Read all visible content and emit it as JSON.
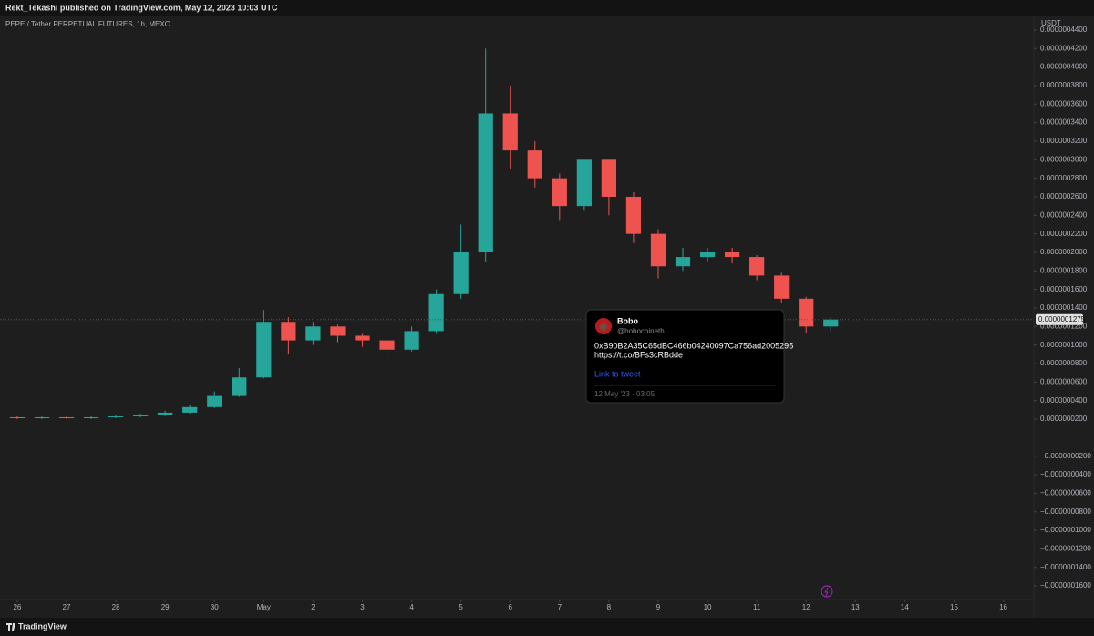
{
  "header": {
    "publisher": "Rekt_Tekashi published on TradingView.com, May 12, 2023 10:03 UTC"
  },
  "chart_data": {
    "type": "candlestick",
    "title": "PEPE / Tether PERPETUAL FUTURES, 1h, MEXC",
    "currency": "USDT",
    "up_color": "#26a69a",
    "down_color": "#ef5350",
    "x": [
      0,
      0.5,
      1,
      1.5,
      2,
      2.5,
      3,
      3.5,
      4,
      4.5,
      5,
      5.5,
      6,
      6.5,
      7,
      7.5,
      8,
      8.5,
      9,
      9.5,
      10,
      10.5,
      11,
      11.5,
      12,
      12.5,
      13,
      13.5,
      14,
      14.5,
      15,
      15.5,
      16,
      16.5
    ],
    "open": [
      2.2e-08,
      2.1e-08,
      2.2e-08,
      2.1e-08,
      2.2e-08,
      2.3e-08,
      2.4e-08,
      2.7e-08,
      3.3e-08,
      4.5e-08,
      6.5e-08,
      1.25e-07,
      1.05e-07,
      1.2e-07,
      1.1e-07,
      1.05e-07,
      9.5e-08,
      1.15e-07,
      1.55e-07,
      2e-07,
      3.5e-07,
      3.1e-07,
      2.8e-07,
      2.5e-07,
      3e-07,
      2.6e-07,
      2.2e-07,
      1.85e-07,
      1.95e-07,
      2e-07,
      1.95e-07,
      1.75e-07,
      1.5e-07,
      1.2e-07
    ],
    "high": [
      2.3e-08,
      2.3e-08,
      2.3e-08,
      2.3e-08,
      2.4e-08,
      2.6e-08,
      2.9e-08,
      3.5e-08,
      5e-08,
      7.5e-08,
      1.38e-07,
      1.3e-07,
      1.25e-07,
      1.22e-07,
      1.12e-07,
      1.08e-07,
      1.2e-07,
      1.6e-07,
      2.3e-07,
      4.2e-07,
      3.8e-07,
      3.2e-07,
      2.85e-07,
      3e-07,
      3e-07,
      2.65e-07,
      2.25e-07,
      2.05e-07,
      2.05e-07,
      2.05e-07,
      1.97e-07,
      1.78e-07,
      1.52e-07,
      1.3e-07
    ],
    "low": [
      2e-08,
      2e-08,
      2e-08,
      2e-08,
      2.1e-08,
      2.2e-08,
      2.3e-08,
      2.6e-08,
      3.2e-08,
      4.4e-08,
      6.4e-08,
      9e-08,
      1e-07,
      1.03e-07,
      9.8e-08,
      8.5e-08,
      9.3e-08,
      1.12e-07,
      1.5e-07,
      1.9e-07,
      2.9e-07,
      2.7e-07,
      2.35e-07,
      2.45e-07,
      2.4e-07,
      2.1e-07,
      1.72e-07,
      1.8e-07,
      1.9e-07,
      1.88e-07,
      1.7e-07,
      1.45e-07,
      1.13e-07,
      1.15e-07
    ],
    "close": [
      2.1e-08,
      2.2e-08,
      2.1e-08,
      2.2e-08,
      2.3e-08,
      2.4e-08,
      2.7e-08,
      3.3e-08,
      4.5e-08,
      6.5e-08,
      1.25e-07,
      1.05e-07,
      1.2e-07,
      1.1e-07,
      1.05e-07,
      9.5e-08,
      1.15e-07,
      1.55e-07,
      2e-07,
      3.5e-07,
      3.1e-07,
      2.8e-07,
      2.5e-07,
      3e-07,
      2.6e-07,
      2.2e-07,
      1.85e-07,
      1.95e-07,
      2e-07,
      1.95e-07,
      1.75e-07,
      1.5e-07,
      1.2e-07,
      1.275e-07
    ],
    "last_price": {
      "value": 1.275e-07,
      "label": "0.0000001275"
    },
    "xlim": [
      -0.35,
      20.6
    ],
    "xticks": [
      {
        "value": 0,
        "label": "26"
      },
      {
        "value": 1,
        "label": "27"
      },
      {
        "value": 2,
        "label": "28"
      },
      {
        "value": 3,
        "label": "29"
      },
      {
        "value": 4,
        "label": "30"
      },
      {
        "value": 5,
        "label": "May"
      },
      {
        "value": 6,
        "label": "2"
      },
      {
        "value": 7,
        "label": "3"
      },
      {
        "value": 8,
        "label": "4"
      },
      {
        "value": 9,
        "label": "5"
      },
      {
        "value": 10,
        "label": "6"
      },
      {
        "value": 11,
        "label": "7"
      },
      {
        "value": 12,
        "label": "8"
      },
      {
        "value": 13,
        "label": "9"
      },
      {
        "value": 14,
        "label": "10"
      },
      {
        "value": 15,
        "label": "11"
      },
      {
        "value": 16,
        "label": "12"
      },
      {
        "value": 17,
        "label": "13"
      },
      {
        "value": 18,
        "label": "14"
      },
      {
        "value": 19,
        "label": "15"
      },
      {
        "value": 20,
        "label": "16"
      }
    ],
    "ylim": [
      -1.747e-07,
      4.547e-07
    ],
    "yticks": [
      {
        "value": 4.4e-07,
        "label": "0.0000004400"
      },
      {
        "value": 4.2e-07,
        "label": "0.0000004200"
      },
      {
        "value": 4e-07,
        "label": "0.0000004000"
      },
      {
        "value": 3.8e-07,
        "label": "0.0000003800"
      },
      {
        "value": 3.6e-07,
        "label": "0.0000003600"
      },
      {
        "value": 3.4e-07,
        "label": "0.0000003400"
      },
      {
        "value": 3.2e-07,
        "label": "0.0000003200"
      },
      {
        "value": 3e-07,
        "label": "0.0000003000"
      },
      {
        "value": 2.8e-07,
        "label": "0.0000002800"
      },
      {
        "value": 2.6e-07,
        "label": "0.0000002600"
      },
      {
        "value": 2.4e-07,
        "label": "0.0000002400"
      },
      {
        "value": 2.2e-07,
        "label": "0.0000002200"
      },
      {
        "value": 2e-07,
        "label": "0.0000002000"
      },
      {
        "value": 1.8e-07,
        "label": "0.0000001800"
      },
      {
        "value": 1.6e-07,
        "label": "0.0000001600"
      },
      {
        "value": 1.4e-07,
        "label": "0.0000001400"
      },
      {
        "value": 1.2e-07,
        "label": "0.0000001200"
      },
      {
        "value": 1e-07,
        "label": "0.0000001000"
      },
      {
        "value": 8e-08,
        "label": "0.0000000800"
      },
      {
        "value": 6e-08,
        "label": "0.0000000600"
      },
      {
        "value": 4e-08,
        "label": "0.0000000400"
      },
      {
        "value": 2e-08,
        "label": "0.0000000200"
      },
      {
        "value": -2e-08,
        "label": "−0.0000000200"
      },
      {
        "value": -4e-08,
        "label": "−0.0000000400"
      },
      {
        "value": -6e-08,
        "label": "−0.0000000600"
      },
      {
        "value": -8e-08,
        "label": "−0.0000000800"
      },
      {
        "value": -1e-07,
        "label": "−0.0000001000"
      },
      {
        "value": -1.2e-07,
        "label": "−0.0000001200"
      },
      {
        "value": -1.4e-07,
        "label": "−0.0000001400"
      },
      {
        "value": -1.6e-07,
        "label": "−0.0000001600"
      }
    ]
  },
  "tweet": {
    "name": "Bobo",
    "handle": "@bobocoineth",
    "text": "0xB90B2A35C65dBC466b04240097Ca756ad2005295",
    "link": "https://t.co/BFs3cRBdde",
    "link_label": "Link to tweet",
    "date": "12 May '23 · 03:05"
  },
  "footer": {
    "brand": "TradingView"
  }
}
